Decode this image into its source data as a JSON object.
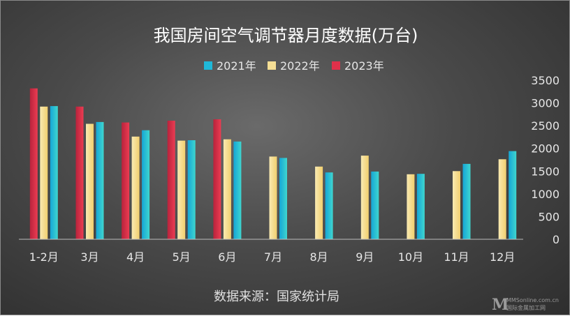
{
  "chart_data": {
    "type": "bar",
    "title": "我国房间空气调节器月度数据(万台)",
    "categories": [
      "1-2月",
      "3月",
      "4月",
      "5月",
      "6月",
      "7月",
      "8月",
      "9月",
      "10月",
      "11月",
      "12月"
    ],
    "series": [
      {
        "name": "2021年",
        "color": "#1fb8d8",
        "values": [
          2930,
          2580,
          2400,
          2180,
          2150,
          1790,
          1470,
          1490,
          1440,
          1660,
          1940
        ]
      },
      {
        "name": "2022年",
        "color": "#f6df95",
        "values": [
          2920,
          2540,
          2260,
          2170,
          2200,
          1820,
          1600,
          1840,
          1430,
          1500,
          1760
        ]
      },
      {
        "name": "2023年",
        "color": "#e0304a",
        "values": [
          3320,
          2920,
          2570,
          2610,
          2640,
          null,
          null,
          null,
          null,
          null,
          null
        ]
      }
    ],
    "series_order": [
      "2023年",
      "2022年",
      "2021年"
    ],
    "ylim": [
      0,
      3500
    ],
    "yticks": [
      0,
      500,
      1000,
      1500,
      2000,
      2500,
      3000,
      3500
    ],
    "y_axis_position": "right",
    "grid": false,
    "legend_position": "top-center",
    "source": "数据来源：国家统计局"
  },
  "watermark": {
    "logo": "M",
    "line1": "MMSonline.com.cn",
    "line2": "国际金属加工网"
  }
}
